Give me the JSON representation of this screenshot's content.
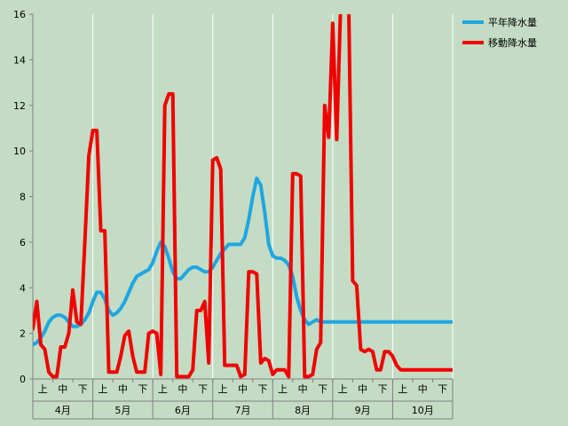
{
  "chart_data": {
    "type": "line",
    "title": "",
    "xlabel": "",
    "ylabel": "",
    "ylim": [
      0,
      16
    ],
    "yticks": [
      0,
      2,
      4,
      6,
      8,
      10,
      12,
      14,
      16
    ],
    "grid": "vertical gridlines at month boundaries",
    "legend_position": "top-right",
    "months": [
      "4月",
      "5月",
      "6月",
      "7月",
      "8月",
      "9月",
      "10月"
    ],
    "periods": [
      "上",
      "中",
      "下"
    ],
    "x": [
      0,
      1,
      2,
      3,
      4,
      5,
      6,
      7,
      8,
      9,
      10,
      11,
      12,
      13,
      14,
      15,
      16,
      17,
      18,
      19,
      20,
      21,
      22,
      23,
      24,
      25,
      26,
      27,
      28,
      29,
      30,
      31,
      32,
      33,
      34,
      35,
      36,
      37,
      38,
      39,
      40,
      41,
      42,
      43,
      44,
      45,
      46,
      47,
      48,
      49,
      50,
      51,
      52,
      53,
      54,
      55,
      56,
      57,
      58,
      59,
      60,
      61,
      62,
      63,
      64,
      65,
      66,
      67,
      68,
      69,
      70,
      71,
      72,
      73,
      74,
      75,
      76,
      77,
      78,
      79,
      80,
      81,
      82,
      83,
      84,
      85,
      86,
      87,
      88,
      89,
      90,
      91,
      92,
      93,
      94,
      95,
      96,
      97,
      98,
      99,
      100,
      101,
      102,
      103,
      104,
      105
    ],
    "series": [
      {
        "name": "平年降水量",
        "color": "#1ea7e1",
        "values": [
          1.5,
          1.6,
          1.8,
          2.1,
          2.5,
          2.7,
          2.8,
          2.8,
          2.7,
          2.5,
          2.3,
          2.3,
          2.4,
          2.6,
          2.9,
          3.4,
          3.8,
          3.8,
          3.5,
          3.0,
          2.8,
          2.9,
          3.1,
          3.4,
          3.8,
          4.2,
          4.5,
          4.6,
          4.7,
          4.8,
          5.1,
          5.6,
          6.0,
          5.8,
          5.3,
          4.7,
          4.4,
          4.4,
          4.6,
          4.8,
          4.9,
          4.9,
          4.8,
          4.7,
          4.7,
          4.9,
          5.2,
          5.5,
          5.7,
          5.9,
          5.9,
          5.9,
          5.9,
          6.2,
          7.0,
          8.0,
          8.8,
          8.5,
          7.3,
          5.9,
          5.4,
          5.3,
          5.3,
          5.2,
          5.0,
          4.5,
          3.6,
          3.0,
          2.6,
          2.4,
          2.5,
          2.6,
          2.5,
          2.5,
          2.5,
          2.5,
          2.5,
          2.5,
          2.5,
          2.5,
          2.5,
          2.5,
          2.5,
          2.5,
          2.5,
          2.5,
          2.5,
          2.5,
          2.5,
          2.5,
          2.5,
          2.5,
          2.5,
          2.5,
          2.5,
          2.5,
          2.5,
          2.5,
          2.5,
          2.5,
          2.5,
          2.5,
          2.5,
          2.5,
          2.5,
          2.5
        ]
      },
      {
        "name": "移動降水量",
        "color": "#f00000",
        "values": [
          2.2,
          3.4,
          1.5,
          1.3,
          0.3,
          0.1,
          0.1,
          1.4,
          1.4,
          2.0,
          3.9,
          2.5,
          2.4,
          6.0,
          9.8,
          10.9,
          10.9,
          6.5,
          6.5,
          0.3,
          0.3,
          0.3,
          1.0,
          1.9,
          2.1,
          1.0,
          0.3,
          0.3,
          0.3,
          2.0,
          2.1,
          2.0,
          0.2,
          12.0,
          12.5,
          12.5,
          0.1,
          0.1,
          0.1,
          0.1,
          0.4,
          3.0,
          3.0,
          3.4,
          0.7,
          9.6,
          9.7,
          9.2,
          0.6,
          0.6,
          0.6,
          0.6,
          0.1,
          0.2,
          4.7,
          4.7,
          4.6,
          0.7,
          0.9,
          0.8,
          0.2,
          0.4,
          0.4,
          0.4,
          0.1,
          9.0,
          9.0,
          8.9,
          0.1,
          0.1,
          0.2,
          1.3,
          1.6,
          12.0,
          10.6,
          15.6,
          10.5,
          16.5,
          16.5,
          16.5,
          4.3,
          4.1,
          1.3,
          1.2,
          1.3,
          1.2,
          0.4,
          0.4,
          1.2,
          1.2,
          1.0,
          0.6,
          0.4,
          0.4,
          0.4,
          0.4,
          0.4,
          0.4,
          0.4,
          0.4,
          0.4,
          0.4,
          0.4,
          0.4,
          0.4,
          0.4
        ]
      }
    ]
  }
}
